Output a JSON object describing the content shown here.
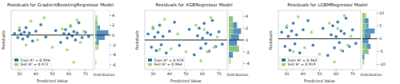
{
  "chart_data": [
    {
      "type": "scatter",
      "title": "Residuals for GradientBoostingRegressor Model",
      "x_label": "Predicted Value",
      "y_label": "Residuals",
      "xlim": [
        25,
        75
      ],
      "xticks": [
        30,
        40,
        50,
        60,
        70
      ],
      "ylim": [
        -7,
        5
      ],
      "yticks": [
        -6,
        -4,
        -2,
        0,
        2,
        4
      ],
      "reference_line": 0,
      "legend": "lower left",
      "hist": {
        "label": "Distribution",
        "bins": [
          -7,
          -6,
          -5,
          -4,
          -3,
          -2,
          -1,
          0,
          1,
          2,
          3,
          4,
          5
        ],
        "xlim": [
          0,
          12
        ]
      },
      "series": [
        {
          "name": "Train R² = 0.994",
          "color": "#1f6fa8",
          "x": [
            27,
            29,
            30,
            31,
            32,
            33,
            34,
            35,
            36,
            38,
            40,
            43,
            46,
            52,
            55,
            57,
            58,
            59,
            60,
            61,
            62,
            63,
            64,
            65,
            66,
            68,
            70,
            72
          ],
          "values": [
            0.3,
            -0.5,
            1.0,
            0.2,
            -0.8,
            0.6,
            1.5,
            -0.3,
            0.4,
            -1.2,
            0.8,
            2.1,
            -0.4,
            0.9,
            -1.5,
            0.3,
            1.1,
            -0.6,
            0.2,
            1.8,
            -0.2,
            0.7,
            -1.0,
            0.4,
            2.5,
            -0.5,
            0.6,
            -0.3
          ],
          "counts": [
            0,
            0,
            0,
            0,
            0,
            3,
            8,
            11,
            4,
            2,
            0,
            0
          ]
        },
        {
          "name": "Test R² = 0.972",
          "color": "#a0d468",
          "x": [
            30,
            34,
            37,
            41,
            45,
            50,
            56,
            59,
            61,
            63,
            65,
            67,
            69
          ],
          "values": [
            1.5,
            -2.0,
            2.8,
            -1.0,
            3.5,
            -2.5,
            1.2,
            -3.0,
            2.0,
            -5.5,
            3.0,
            -1.5,
            0.8
          ],
          "counts": [
            0,
            1,
            0,
            0,
            3,
            1,
            1,
            1,
            2,
            2,
            2,
            0
          ]
        }
      ]
    },
    {
      "type": "scatter",
      "title": "Residuals for XGBRegressor Model",
      "x_label": "Predicted Value",
      "y_label": "Residuals",
      "xlim": [
        25,
        75
      ],
      "xticks": [
        30,
        40,
        50,
        60,
        70
      ],
      "ylim": [
        -5,
        5
      ],
      "yticks": [
        -4,
        -2,
        0,
        2,
        4
      ],
      "reference_line": 0,
      "legend": "lower left",
      "hist": {
        "label": "Distribution",
        "bins": [
          -5,
          -4,
          -3,
          -2,
          -1,
          0,
          1,
          2,
          3,
          4,
          5
        ],
        "xlim": [
          0,
          7
        ]
      },
      "series": [
        {
          "name": "Train R² = 0.978",
          "color": "#1f6fa8",
          "x": [
            27,
            29,
            30,
            31,
            32,
            33,
            34,
            35,
            36,
            38,
            40,
            43,
            46,
            52,
            55,
            57,
            58,
            59,
            60,
            61,
            62,
            63,
            64,
            65,
            66,
            68,
            70,
            72
          ],
          "values": [
            1.0,
            -1.2,
            2.0,
            0.5,
            -1.8,
            1.3,
            2.5,
            -0.8,
            0.6,
            -2.2,
            1.5,
            3.0,
            -0.9,
            1.8,
            -2.5,
            0.7,
            2.0,
            -1.4,
            0.3,
            2.8,
            -0.6,
            1.2,
            -1.9,
            0.9,
            3.3,
            -1.1,
            1.4,
            -0.7
          ],
          "counts": [
            0,
            0,
            2,
            5,
            4,
            5,
            6,
            4,
            2,
            0
          ]
        },
        {
          "name": "Test R² = 0.964",
          "color": "#a0d468",
          "x": [
            30,
            34,
            37,
            41,
            45,
            50,
            56,
            59,
            61,
            63,
            65,
            67,
            69
          ],
          "values": [
            2.2,
            -1.6,
            3.5,
            -1.5,
            1.0,
            -2.0,
            2.5,
            -3.5,
            1.8,
            -2.0,
            3.8,
            -1.2,
            0.5
          ],
          "counts": [
            0,
            1,
            0,
            5,
            0,
            1,
            2,
            2,
            2,
            0
          ]
        }
      ]
    },
    {
      "type": "scatter",
      "title": "Residuals for LGBMRegressor Model",
      "x_label": "Predicted Value",
      "y_label": "Residuals",
      "xlim": [
        25,
        75
      ],
      "xticks": [
        30,
        40,
        50,
        60,
        70
      ],
      "ylim": [
        -12,
        11
      ],
      "yticks": [
        -10,
        -5,
        0,
        5,
        10
      ],
      "reference_line": 0,
      "legend": "lower left",
      "hist": {
        "label": "Distribution",
        "bins": [
          -12,
          -10,
          -8,
          -6,
          -4,
          -2,
          0,
          2,
          4,
          6,
          8,
          10
        ],
        "xlim": [
          0,
          7
        ]
      },
      "series": [
        {
          "name": "Train R² = 0.942",
          "color": "#1f6fa8",
          "x": [
            27,
            29,
            30,
            31,
            32,
            33,
            34,
            35,
            36,
            38,
            40,
            43,
            46,
            52,
            55,
            57,
            58,
            59,
            60,
            61,
            62,
            63,
            64,
            65,
            66,
            68,
            70,
            72
          ],
          "values": [
            2.5,
            -3.0,
            4.5,
            1.0,
            -4.5,
            3.0,
            6.0,
            -2.0,
            1.5,
            -5.5,
            3.5,
            7.0,
            -2.5,
            4.0,
            -6.5,
            1.5,
            5.0,
            -3.5,
            0.8,
            6.5,
            -1.5,
            3.0,
            -4.8,
            2.0,
            8.0,
            -3.0,
            3.5,
            -1.8
          ],
          "counts": [
            0,
            0,
            1,
            3,
            4,
            3,
            4,
            6,
            3,
            3,
            1
          ]
        },
        {
          "name": "Test R² = 0.919",
          "color": "#a0d468",
          "x": [
            30,
            34,
            37,
            41,
            45,
            50,
            56,
            59,
            61,
            63,
            65,
            67,
            69
          ],
          "values": [
            5.0,
            -5.0,
            8.5,
            -3.5,
            2.5,
            -6.0,
            6.0,
            -9.0,
            4.0,
            -4.5,
            9.0,
            -2.5,
            1.0
          ],
          "counts": [
            0,
            1,
            0,
            3,
            2,
            0,
            1,
            1,
            2,
            1,
            2
          ]
        }
      ]
    }
  ]
}
